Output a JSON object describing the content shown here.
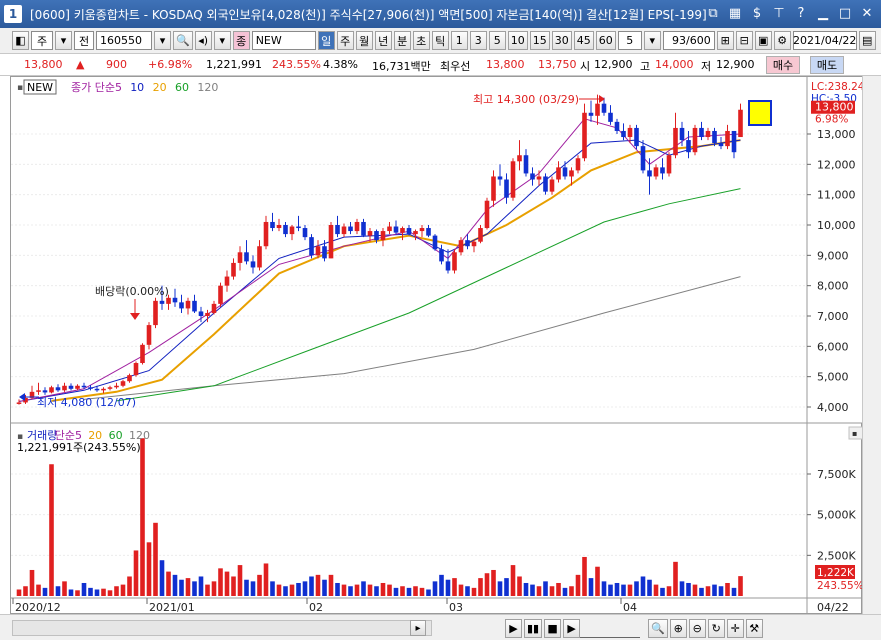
{
  "window": {
    "app_number": "1",
    "title": "[0600] 키움종합차트 - KOSDAQ 외국인보유[4,028(천)] 주식수[27,906(천)] 액면[500] 자본금[140(억)] 결산[12월] EPS[-199]"
  },
  "toolbar": {
    "period_label": "주",
    "prev_label": "전",
    "code": "160550",
    "type_badge": "종",
    "new_label": "NEW",
    "interval_buttons": [
      "일",
      "주",
      "월",
      "년",
      "분",
      "초",
      "틱"
    ],
    "number_buttons": [
      "1",
      "3",
      "5",
      "10",
      "15",
      "30",
      "45",
      "60"
    ],
    "count_value": "5",
    "page_counter": "93/600",
    "date_value": "2021/04/22"
  },
  "quote": {
    "price": "13,800",
    "change": "900",
    "change_pct": "+6.98%",
    "volume": "1,221,991",
    "vol_ratio": "243.55%",
    "turnover": "4.38%",
    "amount": "16,731백만",
    "best_label": "최우선",
    "ask": "13,800",
    "bid": "13,750",
    "open_label": "시",
    "open": "12,900",
    "high_label": "고",
    "high": "14,000",
    "low_label": "저",
    "low": "12,900",
    "buy_label": "매수",
    "sell_label": "매도"
  },
  "price_panel": {
    "new_badge": "NEW",
    "legend": [
      {
        "text": "종가 단순",
        "color": "#a020a0"
      },
      {
        "text": "5",
        "color": "#a020a0"
      },
      {
        "text": "10",
        "color": "#1020c0"
      },
      {
        "text": "20",
        "color": "#e8a000"
      },
      {
        "text": "60",
        "color": "#18a028"
      },
      {
        "text": "120",
        "color": "#808080"
      }
    ],
    "lc_label": "LC:238.24",
    "hc_label": "HC:-3.50",
    "last_price_tag": "13,800",
    "last_pct_tag": "6.98%",
    "annot_high": "최고 14,300 (03/29)",
    "annot_low": "최저 4,080 (12/07)",
    "annot_dividend": "배당락(0.00%)"
  },
  "volume_panel": {
    "legend": [
      {
        "text": "거래량",
        "color": "#1020c0"
      },
      {
        "text": "단순",
        "color": "#a020a0"
      },
      {
        "text": "5",
        "color": "#a020a0"
      },
      {
        "text": "20",
        "color": "#e8a000"
      },
      {
        "text": "60",
        "color": "#18a028"
      },
      {
        "text": "120",
        "color": "#808080"
      }
    ],
    "current": "1,221,991주(243.55%)",
    "last_vol_tag": "1,222K",
    "last_pct_tag": "243.55%"
  },
  "x_axis": {
    "labels": [
      "2020/12",
      "2021/01",
      "02",
      "03",
      "04"
    ],
    "end_label": "04/22"
  },
  "colors": {
    "up": "#e02020",
    "down": "#1030d0",
    "ma5": "#a020a0",
    "ma10": "#1020c0",
    "ma20": "#e8a000",
    "ma60": "#18a028",
    "ma120": "#808080"
  },
  "chart_data": {
    "type": "candlestick",
    "price_y_ticks": [
      4000,
      5000,
      6000,
      7000,
      8000,
      9000,
      10000,
      11000,
      12000,
      13000
    ],
    "volume_y_ticks": [
      "2,500K",
      "5,000K",
      "7,500K"
    ],
    "volume_y_tick_values": [
      2500,
      5000,
      7500
    ],
    "candles": [
      [
        4100,
        4250,
        4080,
        4150,
        400
      ],
      [
        4150,
        4400,
        4100,
        4300,
        600
      ],
      [
        4300,
        4700,
        4250,
        4500,
        1600
      ],
      [
        4500,
        4800,
        4400,
        4550,
        700
      ],
      [
        4550,
        4650,
        4400,
        4480,
        500
      ],
      [
        4480,
        4700,
        4450,
        4650,
        8100
      ],
      [
        4650,
        4750,
        4500,
        4550,
        600
      ],
      [
        4550,
        4800,
        4500,
        4700,
        900
      ],
      [
        4700,
        4780,
        4550,
        4600,
        400
      ],
      [
        4600,
        4750,
        4550,
        4700,
        350
      ],
      [
        4700,
        4800,
        4600,
        4650,
        800
      ],
      [
        4650,
        4720,
        4550,
        4600,
        500
      ],
      [
        4600,
        4700,
        4500,
        4550,
        400
      ],
      [
        4550,
        4650,
        4450,
        4600,
        450
      ],
      [
        4600,
        4700,
        4550,
        4650,
        350
      ],
      [
        4650,
        4800,
        4600,
        4700,
        600
      ],
      [
        4700,
        4900,
        4650,
        4850,
        700
      ],
      [
        4850,
        5100,
        4800,
        5050,
        1200
      ],
      [
        5050,
        5500,
        5000,
        5450,
        2800
      ],
      [
        5450,
        6100,
        5400,
        6050,
        9700
      ],
      [
        6050,
        6800,
        5900,
        6700,
        3300
      ],
      [
        6700,
        7600,
        6600,
        7500,
        4500
      ],
      [
        7500,
        8000,
        7200,
        7400,
        2200
      ],
      [
        7400,
        7700,
        7200,
        7600,
        1500
      ],
      [
        7600,
        7900,
        7300,
        7450,
        1300
      ],
      [
        7450,
        7700,
        7100,
        7250,
        1000
      ],
      [
        7250,
        7600,
        7050,
        7500,
        1100
      ],
      [
        7500,
        7700,
        7100,
        7150,
        900
      ],
      [
        7150,
        7300,
        6800,
        7000,
        1200
      ],
      [
        7000,
        7200,
        6800,
        7100,
        700
      ],
      [
        7100,
        7500,
        7050,
        7400,
        900
      ],
      [
        7400,
        8100,
        7300,
        8000,
        1700
      ],
      [
        8000,
        8500,
        7800,
        8300,
        1500
      ],
      [
        8300,
        8900,
        8200,
        8750,
        1200
      ],
      [
        8750,
        9300,
        8500,
        9100,
        1900
      ],
      [
        9100,
        9500,
        8700,
        8800,
        1000
      ],
      [
        8800,
        9000,
        8400,
        8600,
        900
      ],
      [
        8600,
        9500,
        8500,
        9300,
        1300
      ],
      [
        9300,
        10300,
        9200,
        10100,
        2000
      ],
      [
        10100,
        10400,
        9800,
        9900,
        900
      ],
      [
        9900,
        10200,
        9800,
        10000,
        700
      ],
      [
        10000,
        10100,
        9600,
        9700,
        600
      ],
      [
        9700,
        10000,
        9500,
        9950,
        700
      ],
      [
        9950,
        10300,
        9800,
        9900,
        800
      ],
      [
        9900,
        10000,
        9500,
        9600,
        900
      ],
      [
        9600,
        9700,
        8900,
        9000,
        1200
      ],
      [
        9000,
        9500,
        8900,
        9300,
        1300
      ],
      [
        9300,
        9500,
        8800,
        8900,
        1000
      ],
      [
        8900,
        10100,
        8900,
        10000,
        1300
      ],
      [
        10000,
        10300,
        9600,
        9700,
        800
      ],
      [
        9700,
        10050,
        9600,
        9950,
        700
      ],
      [
        9950,
        10100,
        9700,
        9800,
        600
      ],
      [
        9800,
        10200,
        9700,
        10100,
        700
      ],
      [
        10100,
        10200,
        9600,
        9650,
        900
      ],
      [
        9650,
        9900,
        9450,
        9800,
        700
      ],
      [
        9800,
        9850,
        9400,
        9500,
        600
      ],
      [
        9500,
        9900,
        9300,
        9800,
        800
      ],
      [
        9800,
        10100,
        9700,
        9950,
        700
      ],
      [
        9950,
        10150,
        9700,
        9750,
        500
      ],
      [
        9750,
        9950,
        9500,
        9900,
        600
      ],
      [
        9900,
        10000,
        9650,
        9700,
        500
      ],
      [
        9700,
        9850,
        9500,
        9800,
        600
      ],
      [
        9800,
        10000,
        9600,
        9900,
        500
      ],
      [
        9900,
        10000,
        9600,
        9650,
        400
      ],
      [
        9650,
        9700,
        9150,
        9200,
        900
      ],
      [
        9200,
        9350,
        8700,
        8800,
        1300
      ],
      [
        8800,
        9200,
        8400,
        8500,
        1000
      ],
      [
        8500,
        9200,
        8400,
        9100,
        1100
      ],
      [
        9100,
        9600,
        9000,
        9500,
        700
      ],
      [
        9500,
        9700,
        9200,
        9300,
        600
      ],
      [
        9300,
        9500,
        9100,
        9450,
        500
      ],
      [
        9450,
        10000,
        9400,
        9900,
        1100
      ],
      [
        9900,
        10900,
        9850,
        10800,
        1400
      ],
      [
        10800,
        11800,
        10600,
        11600,
        1600
      ],
      [
        11600,
        12000,
        11300,
        11500,
        900
      ],
      [
        11500,
        11700,
        10700,
        10900,
        1100
      ],
      [
        10900,
        12200,
        10800,
        12100,
        1900
      ],
      [
        12100,
        12800,
        11800,
        12300,
        1200
      ],
      [
        12300,
        12500,
        11600,
        11700,
        800
      ],
      [
        11700,
        11900,
        11300,
        11500,
        700
      ],
      [
        11500,
        11800,
        11300,
        11600,
        600
      ],
      [
        11600,
        11700,
        11000,
        11100,
        900
      ],
      [
        11100,
        11600,
        11000,
        11500,
        600
      ],
      [
        11500,
        12100,
        11400,
        11900,
        800
      ],
      [
        11900,
        12100,
        11500,
        11600,
        500
      ],
      [
        11600,
        11900,
        11300,
        11800,
        600
      ],
      [
        11800,
        12300,
        11700,
        12200,
        1300
      ],
      [
        12200,
        14000,
        12100,
        13700,
        2400
      ],
      [
        13700,
        14100,
        13400,
        13600,
        1100
      ],
      [
        13600,
        14300,
        13300,
        14000,
        1800
      ],
      [
        14000,
        14200,
        13600,
        13700,
        900
      ],
      [
        13700,
        13950,
        13300,
        13400,
        700
      ],
      [
        13400,
        13500,
        13000,
        13100,
        800
      ],
      [
        13100,
        13350,
        12800,
        12900,
        700
      ],
      [
        12900,
        13300,
        12700,
        13200,
        700
      ],
      [
        13200,
        13300,
        12500,
        12600,
        900
      ],
      [
        12600,
        12800,
        11700,
        11800,
        1200
      ],
      [
        11800,
        12200,
        11000,
        11600,
        1000
      ],
      [
        11600,
        12000,
        11500,
        11900,
        700
      ],
      [
        11900,
        12200,
        11500,
        11700,
        500
      ],
      [
        11700,
        12400,
        11600,
        12300,
        600
      ],
      [
        12300,
        13700,
        12200,
        13200,
        2100
      ],
      [
        13200,
        13400,
        12600,
        12800,
        900
      ],
      [
        12800,
        13100,
        12200,
        12400,
        800
      ],
      [
        12400,
        13300,
        12300,
        13200,
        700
      ],
      [
        13200,
        13400,
        12800,
        12900,
        500
      ],
      [
        12900,
        13200,
        12800,
        13100,
        600
      ],
      [
        13100,
        13200,
        12600,
        12700,
        700
      ],
      [
        12700,
        12900,
        12500,
        12600,
        600
      ],
      [
        12600,
        13300,
        12500,
        13100,
        800
      ],
      [
        13100,
        13100,
        12200,
        12400,
        500
      ],
      [
        12900,
        14000,
        12900,
        13800,
        1222
      ]
    ],
    "ma5": [
      [
        0,
        4180
      ],
      [
        10,
        4600
      ],
      [
        20,
        5800
      ],
      [
        30,
        7200
      ],
      [
        40,
        8700
      ],
      [
        50,
        9300
      ],
      [
        60,
        9800
      ],
      [
        66,
        8900
      ],
      [
        72,
        10500
      ],
      [
        80,
        11700
      ],
      [
        87,
        13500
      ],
      [
        92,
        13200
      ],
      [
        97,
        12000
      ],
      [
        103,
        12900
      ],
      [
        111,
        13000
      ]
    ],
    "ma10": [
      [
        0,
        4180
      ],
      [
        10,
        4550
      ],
      [
        20,
        5200
      ],
      [
        30,
        7100
      ],
      [
        40,
        8900
      ],
      [
        50,
        9600
      ],
      [
        60,
        9700
      ],
      [
        66,
        9100
      ],
      [
        72,
        9700
      ],
      [
        80,
        11300
      ],
      [
        88,
        12700
      ],
      [
        95,
        12800
      ],
      [
        100,
        12300
      ],
      [
        105,
        12600
      ],
      [
        111,
        12800
      ]
    ],
    "ma20": [
      [
        5,
        4200
      ],
      [
        15,
        4500
      ],
      [
        22,
        4900
      ],
      [
        30,
        6400
      ],
      [
        40,
        8400
      ],
      [
        50,
        9300
      ],
      [
        60,
        9650
      ],
      [
        68,
        9300
      ],
      [
        75,
        10000
      ],
      [
        82,
        10900
      ],
      [
        88,
        11800
      ],
      [
        95,
        12400
      ],
      [
        105,
        12600
      ],
      [
        111,
        12800
      ]
    ],
    "ma60": [
      [
        15,
        4200
      ],
      [
        30,
        4700
      ],
      [
        45,
        5900
      ],
      [
        60,
        7100
      ],
      [
        75,
        8600
      ],
      [
        90,
        10100
      ],
      [
        100,
        10700
      ],
      [
        111,
        11200
      ]
    ],
    "ma120": [
      [
        10,
        4250
      ],
      [
        30,
        4700
      ],
      [
        50,
        5100
      ],
      [
        70,
        5900
      ],
      [
        90,
        7100
      ],
      [
        111,
        8300
      ]
    ]
  }
}
